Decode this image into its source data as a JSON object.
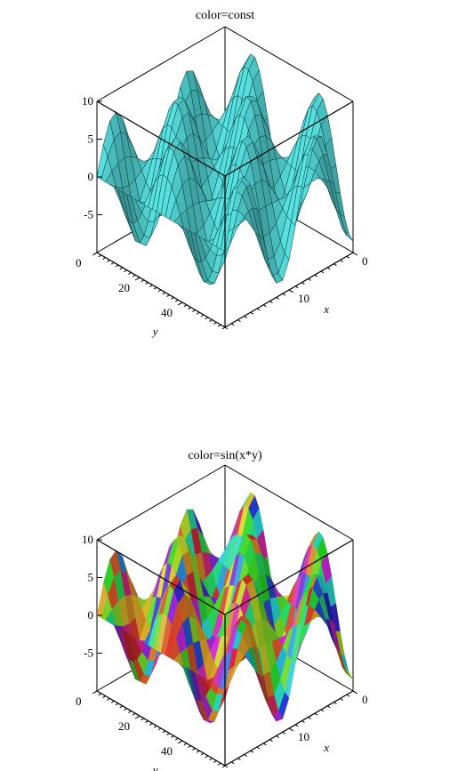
{
  "chart_data": [
    {
      "type": "surface",
      "title": "color=const",
      "xlabel": "x",
      "ylabel": "y",
      "x_ticks": [
        "0",
        "10"
      ],
      "y_ticks": [
        "0",
        "20",
        "40"
      ],
      "z_ticks": [
        "10",
        "5",
        "0",
        "-5"
      ],
      "xlim": [
        0,
        20
      ],
      "ylim": [
        0,
        60
      ],
      "zlim": [
        -10,
        10
      ],
      "surface_color": "#4cc3c3",
      "coloring": "constant",
      "axes": "boxed"
    },
    {
      "type": "surface",
      "title": "color=sin(x*y)",
      "xlabel": "x",
      "ylabel": "y",
      "x_ticks": [
        "0",
        "10"
      ],
      "y_ticks": [
        "0",
        "20",
        "40"
      ],
      "z_ticks": [
        "10",
        "5",
        "0",
        "-5"
      ],
      "xlim": [
        0,
        20
      ],
      "ylim": [
        0,
        60
      ],
      "zlim": [
        -10,
        10
      ],
      "coloring": "hue mapped from sin(x*y)",
      "axes": "boxed"
    }
  ]
}
